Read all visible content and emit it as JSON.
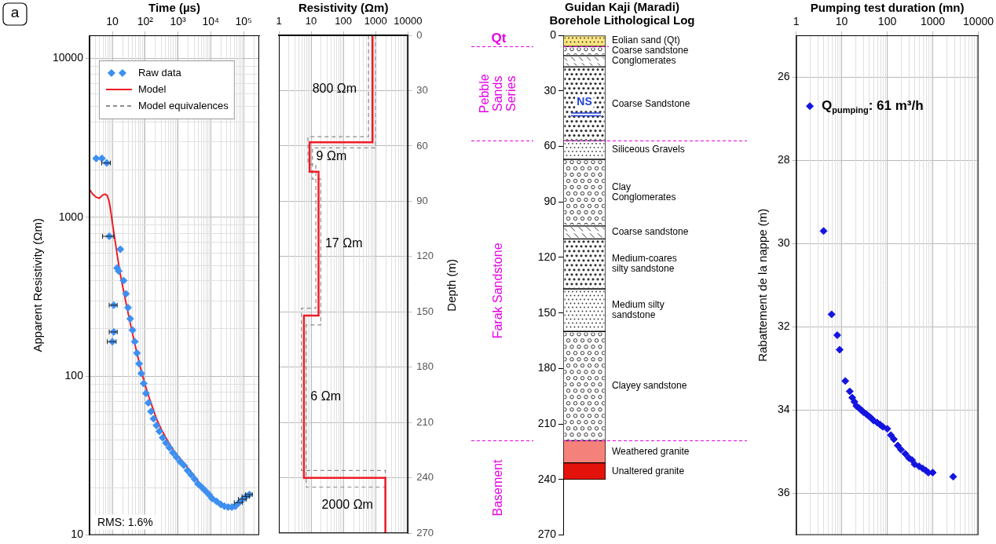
{
  "chart_data": [
    {
      "type": "scatter",
      "panel_label": "a",
      "x_label": "Time (µs)",
      "y_label": "Apparent Resistivity (Ωm)",
      "log": true,
      "grid": true,
      "legend": "upper left",
      "xlim": [
        2,
        300000
      ],
      "ylim": [
        10,
        14000
      ],
      "xticks": [
        10,
        {
          "value": 100,
          "label": "10²"
        },
        {
          "value": 1000,
          "label": "10³"
        },
        {
          "value": 10000,
          "label": "10⁴"
        },
        {
          "value": 100000,
          "label": "10⁵"
        }
      ],
      "yticks": [
        10,
        100,
        1000,
        10000
      ],
      "annotation": "RMS: 1.6%",
      "series": [
        {
          "name": "Raw data",
          "type": "scatter",
          "color": "#3d8ff0",
          "marker": "diamond",
          "x": [
            3.2,
            4.8,
            6.7,
            8,
            10,
            11,
            11,
            14,
            15.5,
            17.5,
            22,
            26,
            30,
            35,
            41,
            48,
            56,
            65,
            76,
            90,
            106,
            125,
            150,
            180,
            220,
            270,
            340,
            430,
            550,
            700,
            900,
            1150,
            1500,
            1950,
            2500,
            3200,
            4100,
            5300,
            6800,
            8800,
            11000,
            15000,
            20000,
            26000,
            34000,
            44000,
            56000,
            72000,
            95000,
            120000,
            150000
          ],
          "y": [
            2350,
            2350,
            2200,
            760,
            165,
            190,
            280,
            480,
            460,
            630,
            400,
            330,
            270,
            230,
            195,
            165,
            140,
            120,
            104,
            90,
            78,
            68,
            60,
            54,
            49,
            45,
            41,
            38,
            35.5,
            33,
            31,
            29,
            27.5,
            25.5,
            24,
            22.5,
            21,
            20,
            19,
            18,
            17,
            16.3,
            15.6,
            15.2,
            15,
            15,
            15.2,
            16,
            16.8,
            17.5,
            18
          ],
          "x_err": [
            null,
            null,
            2,
            3,
            3,
            3,
            3,
            null,
            null,
            null,
            null,
            null,
            null,
            null,
            null,
            null,
            null,
            null,
            null,
            null,
            null,
            null,
            null,
            null,
            null,
            null,
            null,
            null,
            null,
            null,
            null,
            null,
            null,
            null,
            null,
            null,
            null,
            null,
            null,
            null,
            null,
            null,
            null,
            null,
            null,
            null,
            null,
            20000,
            25000,
            30000,
            35000
          ]
        },
        {
          "name": "Model",
          "type": "line",
          "color": "#ee1c25",
          "line_style": "solid",
          "x": [
            2,
            2.5,
            3.2,
            4,
            5,
            6,
            7,
            8,
            9,
            10,
            12,
            14,
            17,
            21,
            26,
            32,
            40,
            50,
            62,
            78,
            100,
            130,
            170,
            220,
            300,
            400,
            550,
            750,
            1000,
            1400,
            2000,
            2800,
            4000,
            5800,
            8500,
            12000,
            18000,
            27000,
            40000,
            55000,
            75000,
            100000,
            130000,
            160000
          ],
          "y": [
            1500,
            1400,
            1340,
            1320,
            1380,
            1400,
            1370,
            1250,
            1080,
            920,
            720,
            580,
            450,
            360,
            290,
            235,
            190,
            155,
            128,
            106,
            88,
            74,
            63,
            54,
            47,
            42,
            37.5,
            34,
            31.5,
            29,
            26.5,
            24.3,
            22,
            20,
            18.3,
            17,
            16,
            15.3,
            15,
            15.1,
            15.6,
            16.5,
            17.3,
            18
          ]
        }
      ]
    },
    {
      "type": "step",
      "x_label": "Resistivity (Ωm)",
      "log": "x",
      "grid": true,
      "xlim": [
        1,
        10000
      ],
      "xticks": [
        1,
        10,
        100,
        1000,
        10000
      ],
      "ylim": [
        270,
        0
      ],
      "yticks": [
        0,
        30,
        60,
        90,
        120,
        150,
        180,
        210,
        240,
        270
      ],
      "series": [
        {
          "name": "Model",
          "color": "#ee1c25",
          "line_style": "solid",
          "layers": [
            {
              "resistivity": 800,
              "top": 0,
              "bottom": 58,
              "label": "800 Ωm"
            },
            {
              "resistivity": 9,
              "top": 58,
              "bottom": 74,
              "label": "9 Ωm"
            },
            {
              "resistivity": 17,
              "top": 74,
              "bottom": 152,
              "label": "17 Ωm"
            },
            {
              "resistivity": 6,
              "top": 152,
              "bottom": 240,
              "label": "6 Ωm"
            },
            {
              "resistivity": 2000,
              "top": 240,
              "bottom": null,
              "label": "2000 Ωm"
            }
          ]
        },
        {
          "name": "Model equivalences",
          "color": "#8c8c8c",
          "line_style": "dashed",
          "models": [
            [
              {
                "resistivity": 600,
                "top": 0,
                "bottom": 55
              },
              {
                "resistivity": 8,
                "top": 55,
                "bottom": 70
              },
              {
                "resistivity": 14,
                "top": 70,
                "bottom": 148
              },
              {
                "resistivity": 5,
                "top": 148,
                "bottom": 236
              },
              {
                "resistivity": 2000,
                "top": 236,
                "bottom": null
              }
            ],
            [
              {
                "resistivity": 1000,
                "top": 0,
                "bottom": 61
              },
              {
                "resistivity": 11,
                "top": 61,
                "bottom": 78
              },
              {
                "resistivity": 20,
                "top": 78,
                "bottom": 157
              },
              {
                "resistivity": 7,
                "top": 157,
                "bottom": 245
              },
              {
                "resistivity": 2000,
                "top": 245,
                "bottom": null
              }
            ]
          ]
        }
      ]
    },
    {
      "type": "lithological_log",
      "title": "Guidan Kaji (Maradi)",
      "subtitle": "Borehole Lithological Log",
      "y_label": "Depth (m)",
      "ylim": [
        270,
        0
      ],
      "yticks": [
        0,
        30,
        60,
        90,
        120,
        150,
        180,
        210,
        240,
        270
      ],
      "layers": [
        {
          "name": "Eolian sand (Qt)",
          "top": 0,
          "bottom": 6,
          "color": "#ffe680"
        },
        {
          "name": "Coarse sandstone",
          "top": 6,
          "bottom": 11,
          "color": "#ffffff"
        },
        {
          "name": "Conglomerates",
          "top": 11,
          "bottom": 17,
          "color": "#ffffff"
        },
        {
          "name": "Coarse Sandstone",
          "top": 17,
          "bottom": 57,
          "color": "#ffffff"
        },
        {
          "name": "Siliceous Gravels",
          "top": 57,
          "bottom": 67,
          "color": "#ffffff"
        },
        {
          "name": "Clay Conglomerates",
          "top": 67,
          "bottom": 103,
          "color": "#ffffff"
        },
        {
          "name": "Coarse sandstone",
          "top": 103,
          "bottom": 110,
          "color": "#ffffff"
        },
        {
          "name": "Medium-coares silty sandstone",
          "top": 110,
          "bottom": 137,
          "color": "#ffffff"
        },
        {
          "name": "Medium silty sandstone",
          "top": 137,
          "bottom": 160,
          "color": "#ffffff"
        },
        {
          "name": "Clayey sandstone",
          "top": 160,
          "bottom": 219,
          "color": "#ffffff"
        },
        {
          "name": "Weathered granite",
          "top": 219,
          "bottom": 231,
          "color": "#f4827a"
        },
        {
          "name": "Unaltered granite",
          "top": 231,
          "bottom": 240,
          "color": "#e3120b"
        }
      ],
      "groups": [
        {
          "name": "Qt",
          "top": 0,
          "bottom": 6,
          "color": "#e600e6"
        },
        {
          "name": "Pebble Sands Series",
          "top": 6,
          "bottom": 57,
          "color": "#e600e6"
        },
        {
          "name": "Farak Sandstone",
          "top": 57,
          "bottom": 219,
          "color": "#e600e6"
        },
        {
          "name": "Basement",
          "top": 219,
          "bottom": 270,
          "color": "#e600e6"
        }
      ],
      "water_level": {
        "label": "NS",
        "depth": 42,
        "color": "#1f3fd0"
      }
    },
    {
      "type": "scatter",
      "x_label": "Pumping test duration (mn)",
      "y_label": "Rabattement de la nappe (m)",
      "log": "x",
      "grid": true,
      "xlim": [
        1,
        10000
      ],
      "xticks": [
        1,
        10,
        100,
        1000,
        10000
      ],
      "ylim": [
        37,
        25
      ],
      "yticks": [
        26,
        28,
        30,
        32,
        34,
        36
      ],
      "annotation": {
        "symbol": "Q",
        "subscript": "pumping",
        "text": ": 61 m³/h"
      },
      "series": [
        {
          "type": "scatter",
          "color": "#1414e0",
          "marker": "diamond",
          "x": [
            2,
            4,
            6,
            8,
            9,
            12,
            15,
            17,
            19,
            21,
            24,
            27,
            30,
            35,
            40,
            45,
            50,
            60,
            70,
            80,
            100,
            120,
            140,
            170,
            200,
            250,
            300,
            350,
            400,
            500,
            600,
            700,
            800,
            1000,
            2800
          ],
          "y": [
            26.7,
            29.7,
            31.7,
            32.2,
            32.55,
            33.3,
            33.55,
            33.7,
            33.8,
            33.9,
            33.95,
            34.0,
            34.05,
            34.1,
            34.15,
            34.2,
            34.25,
            34.3,
            34.35,
            34.4,
            34.45,
            34.6,
            34.7,
            34.85,
            34.95,
            35.05,
            35.15,
            35.2,
            35.3,
            35.35,
            35.4,
            35.45,
            35.5,
            35.5,
            35.6
          ]
        }
      ]
    }
  ]
}
